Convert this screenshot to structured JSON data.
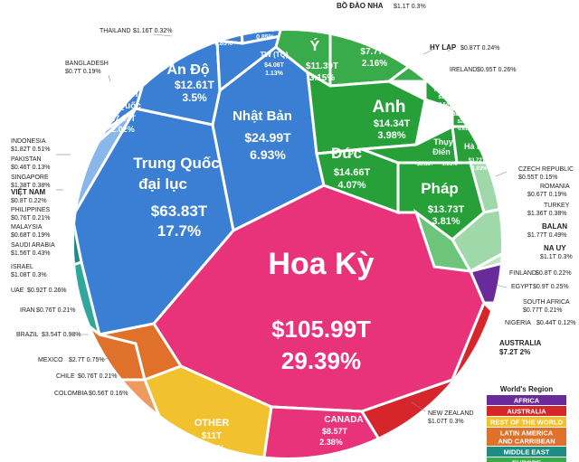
{
  "chart_data": {
    "type": "voronoi-treemap",
    "title": "",
    "unit": "USD trillions",
    "legend_title": "World's Region",
    "regions": [
      {
        "name": "AFRICA",
        "color": "#6a2b9a"
      },
      {
        "name": "AUSTRALIA",
        "color": "#d6262b"
      },
      {
        "name": "REST OF THE WORLD",
        "color": "#f2c12e"
      },
      {
        "name": "LATIN AMERICA AND CARRIBEAN",
        "color": "#e0712b"
      },
      {
        "name": "MIDDLE EAST",
        "color": "#1e8c82"
      },
      {
        "name": "EUROPE",
        "color": "#3aab4a"
      }
    ],
    "countries": [
      {
        "name": "Hoa Kỳ",
        "value": "$105.99T",
        "share": "29.39%"
      },
      {
        "name": "Trung Quốc đại lục",
        "value": "$63.83T",
        "share": "17.7%"
      },
      {
        "name": "Nhật Bản",
        "value": "$24.99T",
        "share": "6.93%"
      },
      {
        "name": "Ấn Độ",
        "value": "$12.61T",
        "share": "3.5%"
      },
      {
        "name": "Hàn Quốc",
        "value": "$7.03T",
        "share": "2.02%"
      },
      {
        "name": "Nga",
        "value": "$3.05T",
        "share": "0.85%"
      },
      {
        "name": "HK (TQ)",
        "value": "$3.07T",
        "share": "0.85%"
      },
      {
        "name": "TW (TQ)",
        "value": "$4.06T",
        "share": "1.13%"
      },
      {
        "name": "Ý",
        "value": "$11.39T",
        "share": "3.15%"
      },
      {
        "name": "TBN",
        "value": "$7.77T",
        "share": "2.16%"
      },
      {
        "name": "Anh",
        "value": "$14.34T",
        "share": "3.98%"
      },
      {
        "name": "Đức",
        "value": "$14.66T",
        "share": "4.07%"
      },
      {
        "name": "Pháp",
        "value": "$13.73T",
        "share": "3.81%"
      },
      {
        "name": "Thụy Điển",
        "value": "$3.88T",
        "share": "1.08%"
      },
      {
        "name": "Hà Lan",
        "value": "$3.72T",
        "share": "1.03%"
      },
      {
        "name": "Belgium",
        "value": "$2.19T",
        "share": "0.61%"
      },
      {
        "name": "Austria",
        "value": "$1.95T",
        "share": "0.54%"
      },
      {
        "name": "Canada",
        "value": "$8.57T",
        "share": "2.38%"
      },
      {
        "name": "Other",
        "value": "$11T",
        "share": "3.04%"
      },
      {
        "name": "Australia",
        "value": "$7.2T",
        "share": "2%"
      },
      {
        "name": "Bồ Đào Nha",
        "value": "$1.1T",
        "share": "0.3%"
      },
      {
        "name": "Hy Lạp",
        "value": "$0.87T",
        "share": "0.24%"
      },
      {
        "name": "Ireland",
        "value": "$0.95T",
        "share": "0.26%"
      },
      {
        "name": "Czech Republic",
        "value": "$0.55T",
        "share": "0.15%"
      },
      {
        "name": "Romania",
        "value": "$0.67T",
        "share": "0.19%"
      },
      {
        "name": "Turkey",
        "value": "$1.36T",
        "share": "0.38%"
      },
      {
        "name": "Balan",
        "value": "$1.77T",
        "share": "0.49%"
      },
      {
        "name": "Na Uy",
        "value": "$1.1T",
        "share": "0.3%"
      },
      {
        "name": "Finland",
        "value": "$0.8T",
        "share": "0.22%"
      },
      {
        "name": "Egypt",
        "value": "$0.9T",
        "share": "0.25%"
      },
      {
        "name": "South Africa",
        "value": "$0.77T",
        "share": "0.21%"
      },
      {
        "name": "Nigeria",
        "value": "$0.44T",
        "share": "0.12%"
      },
      {
        "name": "New Zealand",
        "value": "$1.07T",
        "share": "0.3%"
      },
      {
        "name": "Thailand",
        "value": "$1.16T",
        "share": "0.32%"
      },
      {
        "name": "Bangladesh",
        "value": "$0.7T",
        "share": "0.19%"
      },
      {
        "name": "Indonesia",
        "value": "$1.82T",
        "share": "0.51%"
      },
      {
        "name": "Pakistan",
        "value": "$0.46T",
        "share": "0.13%"
      },
      {
        "name": "Singapore",
        "value": "$1.38T",
        "share": "0.38%"
      },
      {
        "name": "Việt Nam",
        "value": "$0.8T",
        "share": "0.22%"
      },
      {
        "name": "Philippines",
        "value": "$0.76T",
        "share": "0.21%"
      },
      {
        "name": "Malaysia",
        "value": "$0.68T",
        "share": "0.19%"
      },
      {
        "name": "Saudi Arabia",
        "value": "$1.56T",
        "share": "0.43%"
      },
      {
        "name": "Israel",
        "value": "$1.08T",
        "share": "0.3%"
      },
      {
        "name": "UAE",
        "value": "$0.92T",
        "share": "0.26%"
      },
      {
        "name": "Iran",
        "value": "$0.76T",
        "share": "0.21%"
      },
      {
        "name": "Brazil",
        "value": "$3.54T",
        "share": "0.98%"
      },
      {
        "name": "Mexico",
        "value": "$2.7T",
        "share": "0.75%"
      },
      {
        "name": "Chile",
        "value": "$0.76T",
        "share": "0.21%"
      },
      {
        "name": "Colombia",
        "value": "$0.56T",
        "share": "0.16%"
      }
    ]
  },
  "labels": {
    "usa_name": "Hoa Kỳ",
    "usa_value": "$105.99T",
    "usa_share": "29.39%",
    "china_l1": "Trung Quốc",
    "china_l2": "đại lục",
    "china_value": "$63.83T",
    "china_share": "17.7%",
    "japan_name": "Nhật Bản",
    "japan_value": "$24.99T",
    "japan_share": "6.93%",
    "india_name": "Ấn Độ",
    "india_value": "$12.61T",
    "india_share": "3.5%",
    "korea_l1": "Hàn",
    "korea_l2": "Quốc",
    "korea_value": "$7.03T",
    "korea_share": "2.02%",
    "russia_name": "Nga",
    "russia_value": "$3.05T",
    "russia_share": "0.85%",
    "hk_name": "HK (TQ)",
    "hk_value": "$3.07T",
    "hk_share": "0.85%",
    "tw_name": "TW (TQ)",
    "tw_value": "$4.06T",
    "tw_share": "1.13%",
    "italy_name": "Ý",
    "italy_value": "$11.39T",
    "italy_share": "3.15%",
    "spain_name": "TBN",
    "spain_value": "$7.77T",
    "spain_share": "2.16%",
    "uk_name": "Anh",
    "uk_value": "$14.34T",
    "uk_share": "3.98%",
    "germany_name": "Đức",
    "germany_value": "$14.66T",
    "germany_share": "4.07%",
    "france_name": "Pháp",
    "france_value": "$13.73T",
    "france_share": "3.81%",
    "sweden_l1": "Thụy",
    "sweden_l2": "Điển",
    "sweden_value": "$3.88T",
    "sweden_share": "1.08%",
    "neth_name": "Hà Lan",
    "neth_value": "$3.72T",
    "neth_share": "1.03%",
    "belgium_name": "BELGIUM",
    "belgium_value": "$2.19T",
    "belgium_share": "0.61%",
    "austria_name": "AUSTRIA",
    "austria_value": "$1.95T",
    "austria_share": "0.54%",
    "canada_name": "CANADA",
    "canada_value": "$8.57T",
    "canada_share": "2.38%",
    "other_name": "OTHER",
    "other_value": "$11T",
    "other_share": "3.04%",
    "portugal": "BỒ ĐÀO NHA",
    "portugal_vs": "$1.1T  0.3%",
    "greece": "HY LẠP",
    "greece_vs": "$0.87T  0.24%",
    "ireland": "IRELAND",
    "ireland_vs": "$0.95T  0.26%",
    "czech": "CZECH REPUBLIC",
    "czech_vs": "$0.55T  0.15%",
    "romania": "ROMANIA",
    "romania_vs": "$0.67T  0.19%",
    "turkey": "TURKEY",
    "turkey_vs": "$1.36T  0.38%",
    "poland": "BALAN",
    "poland_vs": "$1.77T  0.49%",
    "norway": "NA UY",
    "norway_vs": "$1.1T  0.3%",
    "finland": "FINLAND",
    "finland_vs": "$0.8T  0.22%",
    "egypt": "EGYPT",
    "egypt_vs": "$0.9T  0.25%",
    "safrica": "SOUTH AFRICA",
    "safrica_vs": "$0.77T  0.21%",
    "nigeria": "NIGERIA",
    "nigeria_vs": "$0.44T  0.12%",
    "australia": "AUSTRALIA",
    "australia_vs": "$7.2T  2%",
    "nz": "NEW ZEALAND",
    "nz_vs": "$1.07T  0.3%",
    "thailand": "THAILAND",
    "thailand_vs": "$1.16T  0.32%",
    "bangladesh": "BANGLADESH",
    "bangladesh_vs": "$0.7T  0.19%",
    "indonesia": "INDONESIA",
    "indonesia_vs": "$1.82T  0.51%",
    "pakistan": "PAKISTAN",
    "pakistan_vs": "$0.46T  0.13%",
    "singapore": "SINGAPORE",
    "singapore_vs": "$1.38T  0.38%",
    "vietnam": "VIỆT NAM",
    "vietnam_vs": "$0.8T  0.22%",
    "philippines": "PHILIPPINES",
    "philippines_vs": "$0.76T  0.21%",
    "malaysia": "MALAYSIA",
    "malaysia_vs": "$0.68T  0.19%",
    "saudi": "SAUDI ARABIA",
    "saudi_vs": "$1.56T  0.43%",
    "israel": "ISRAEL",
    "israel_vs": "$1.08T  0.3%",
    "uae": "UAE",
    "uae_vs": "$0.92T  0.26%",
    "iran": "IRAN",
    "iran_vs": "$0.76T  0.21%",
    "brazil": "BRAZIL",
    "brazil_vs": "$3.54T  0.98%",
    "mexico": "MEXICO",
    "mexico_vs": "$2.7T  0.75%",
    "chile": "CHILE",
    "chile_vs": "$0.76T  0.21%",
    "colombia": "COLOMBIA",
    "colombia_vs": "$0.56T  0.16%"
  }
}
